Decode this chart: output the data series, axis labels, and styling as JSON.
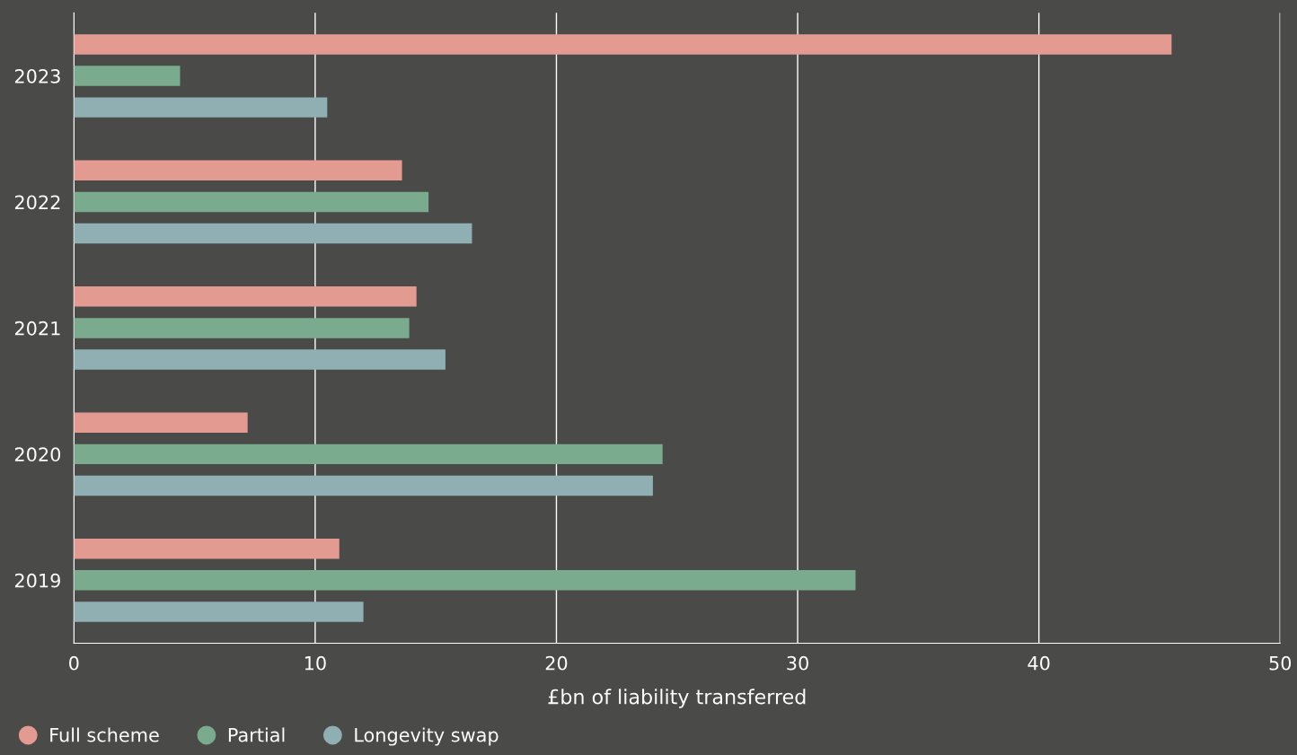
{
  "chart_data": {
    "type": "bar",
    "orientation": "horizontal",
    "xlabel": "£bn of liability transferred",
    "categories": [
      "2023",
      "2022",
      "2021",
      "2020",
      "2019"
    ],
    "series": [
      {
        "name": "Full scheme",
        "color": "#e39a90",
        "values": [
          45.5,
          13.6,
          14.2,
          7.2,
          11.0
        ]
      },
      {
        "name": "Partial",
        "color": "#7aab8e",
        "values": [
          4.4,
          14.7,
          13.9,
          24.4,
          32.4
        ]
      },
      {
        "name": "Longevity swap",
        "color": "#90afb2",
        "values": [
          10.5,
          16.5,
          15.4,
          24.0,
          12.0
        ]
      }
    ],
    "xlim": [
      0,
      50
    ],
    "xticks": [
      0,
      10,
      20,
      30,
      40,
      50
    ],
    "grid": "x",
    "legend": "bottom left"
  }
}
